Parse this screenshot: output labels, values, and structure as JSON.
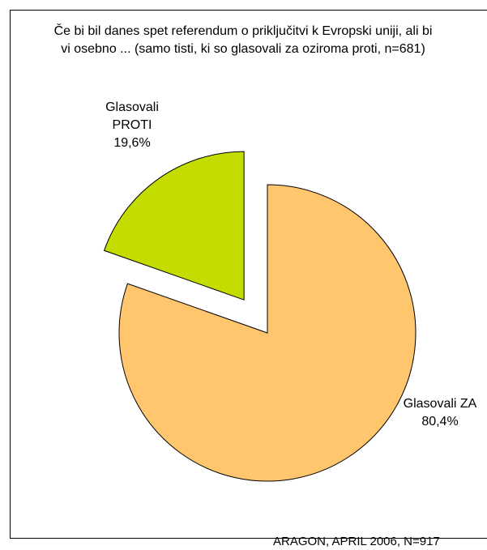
{
  "chart_data": {
    "type": "pie",
    "title": "Če bi bil danes spet referendum o priključitvi k Evropski uniji, ali bi vi osebno ... (samo tisti, ki so glasovali za oziroma proti, n=681)",
    "categories": [
      "Glasovali ZA",
      "Glasovali PROTI"
    ],
    "values": [
      80.4,
      19.6
    ],
    "value_labels": [
      "80,4%",
      "19,6%"
    ],
    "colors": [
      "#FFC66E",
      "#C5DC00"
    ],
    "exploded": [
      false,
      true
    ],
    "source": "ARAGON, APRIL 2006, N=917"
  }
}
